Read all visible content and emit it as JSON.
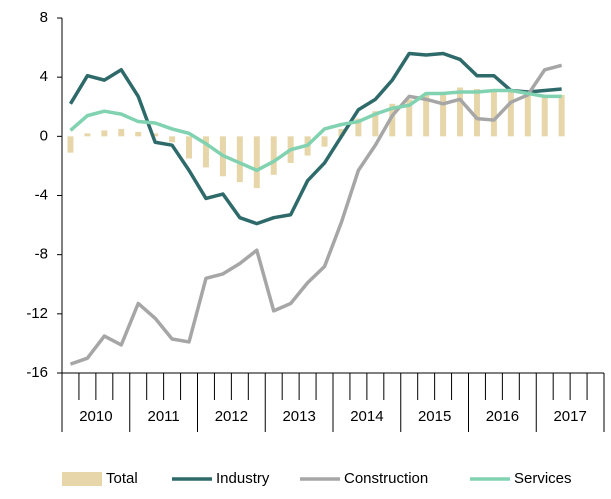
{
  "chart_data": {
    "type": "bar-line",
    "groups": [
      "2010",
      "2011",
      "2012",
      "2013",
      "2014",
      "2015",
      "2016",
      "2017"
    ],
    "series": [
      {
        "name": "Total",
        "type": "bar",
        "color": "#e6d6a9",
        "values": [
          -1.1,
          0.2,
          0.4,
          0.5,
          0.3,
          0.2,
          -0.4,
          -1.5,
          -2.1,
          -2.7,
          -3.1,
          -3.5,
          -2.6,
          -1.8,
          -1.3,
          -0.7,
          0.5,
          1.2,
          1.7,
          2.2,
          2.5,
          2.8,
          3.0,
          3.3,
          3.2,
          3.1,
          3.2,
          3.0,
          2.8,
          2.8,
          null,
          null
        ]
      },
      {
        "name": "Industry",
        "type": "line",
        "color": "#2f6a6b",
        "values": [
          2.2,
          4.1,
          3.8,
          4.5,
          2.7,
          -0.4,
          -0.6,
          -2.3,
          -4.2,
          -3.9,
          -5.5,
          -5.9,
          -5.5,
          -5.3,
          -3.0,
          -1.8,
          0.0,
          1.8,
          2.5,
          3.8,
          5.6,
          5.5,
          5.6,
          5.2,
          4.1,
          4.1,
          3.1,
          3.0,
          3.1,
          3.2,
          null,
          null
        ]
      },
      {
        "name": "Construction",
        "type": "line",
        "color": "#a6a6a6",
        "values": [
          -15.4,
          -15.0,
          -13.5,
          -14.1,
          -11.3,
          -12.3,
          -13.7,
          -13.9,
          -9.6,
          -9.3,
          -8.6,
          -7.7,
          -11.8,
          -11.3,
          -9.9,
          -8.8,
          -5.8,
          -2.3,
          -0.6,
          1.4,
          2.7,
          2.5,
          2.2,
          2.5,
          1.2,
          1.1,
          2.3,
          2.8,
          4.5,
          4.8,
          null,
          null
        ]
      },
      {
        "name": "Services",
        "type": "line",
        "color": "#80d2b1",
        "values": [
          0.4,
          1.4,
          1.7,
          1.5,
          1.0,
          0.9,
          0.5,
          0.2,
          -0.5,
          -1.3,
          -1.8,
          -2.3,
          -1.7,
          -0.9,
          -0.6,
          0.5,
          0.8,
          1.0,
          1.5,
          1.9,
          2.1,
          2.9,
          2.9,
          3.0,
          3.0,
          3.1,
          3.1,
          2.9,
          2.7,
          2.7,
          null,
          null
        ]
      }
    ],
    "ylim": [
      -16,
      8
    ],
    "yticks": [
      8,
      4,
      0,
      -4,
      -8,
      -12,
      -16
    ],
    "legend": "bottom"
  }
}
